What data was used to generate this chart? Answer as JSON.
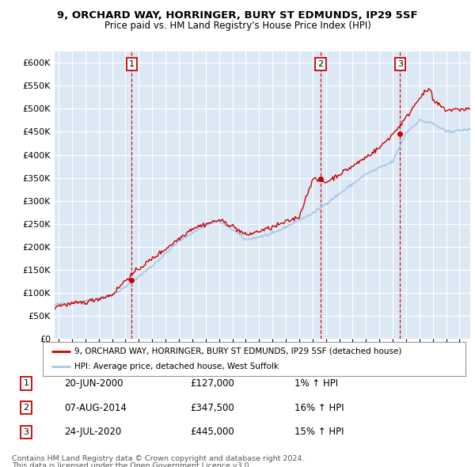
{
  "title": "9, ORCHARD WAY, HORRINGER, BURY ST EDMUNDS, IP29 5SF",
  "subtitle": "Price paid vs. HM Land Registry's House Price Index (HPI)",
  "bg_color": "#dce9f5",
  "plot_bg_color": "#dce9f5",
  "hpi_color": "#a8c8e8",
  "price_color": "#cc0000",
  "ylabel_vals": [
    0,
    50000,
    100000,
    150000,
    200000,
    250000,
    300000,
    350000,
    400000,
    450000,
    500000,
    550000,
    600000
  ],
  "ylim": [
    0,
    625000
  ],
  "xlim_start": 1994.7,
  "xlim_end": 2025.8,
  "sales": [
    {
      "num": 1,
      "date": "20-JUN-2000",
      "price": 127000,
      "pct": "1%",
      "x": 2000.46
    },
    {
      "num": 2,
      "date": "07-AUG-2014",
      "price": 347500,
      "pct": "16%",
      "x": 2014.6
    },
    {
      "num": 3,
      "date": "24-JUL-2020",
      "price": 445000,
      "pct": "15%",
      "x": 2020.55
    }
  ],
  "legend_line1": "9, ORCHARD WAY, HORRINGER, BURY ST EDMUNDS, IP29 5SF (detached house)",
  "legend_line2": "HPI: Average price, detached house, West Suffolk",
  "footer1": "Contains HM Land Registry data © Crown copyright and database right 2024.",
  "footer2": "This data is licensed under the Open Government Licence v3.0."
}
